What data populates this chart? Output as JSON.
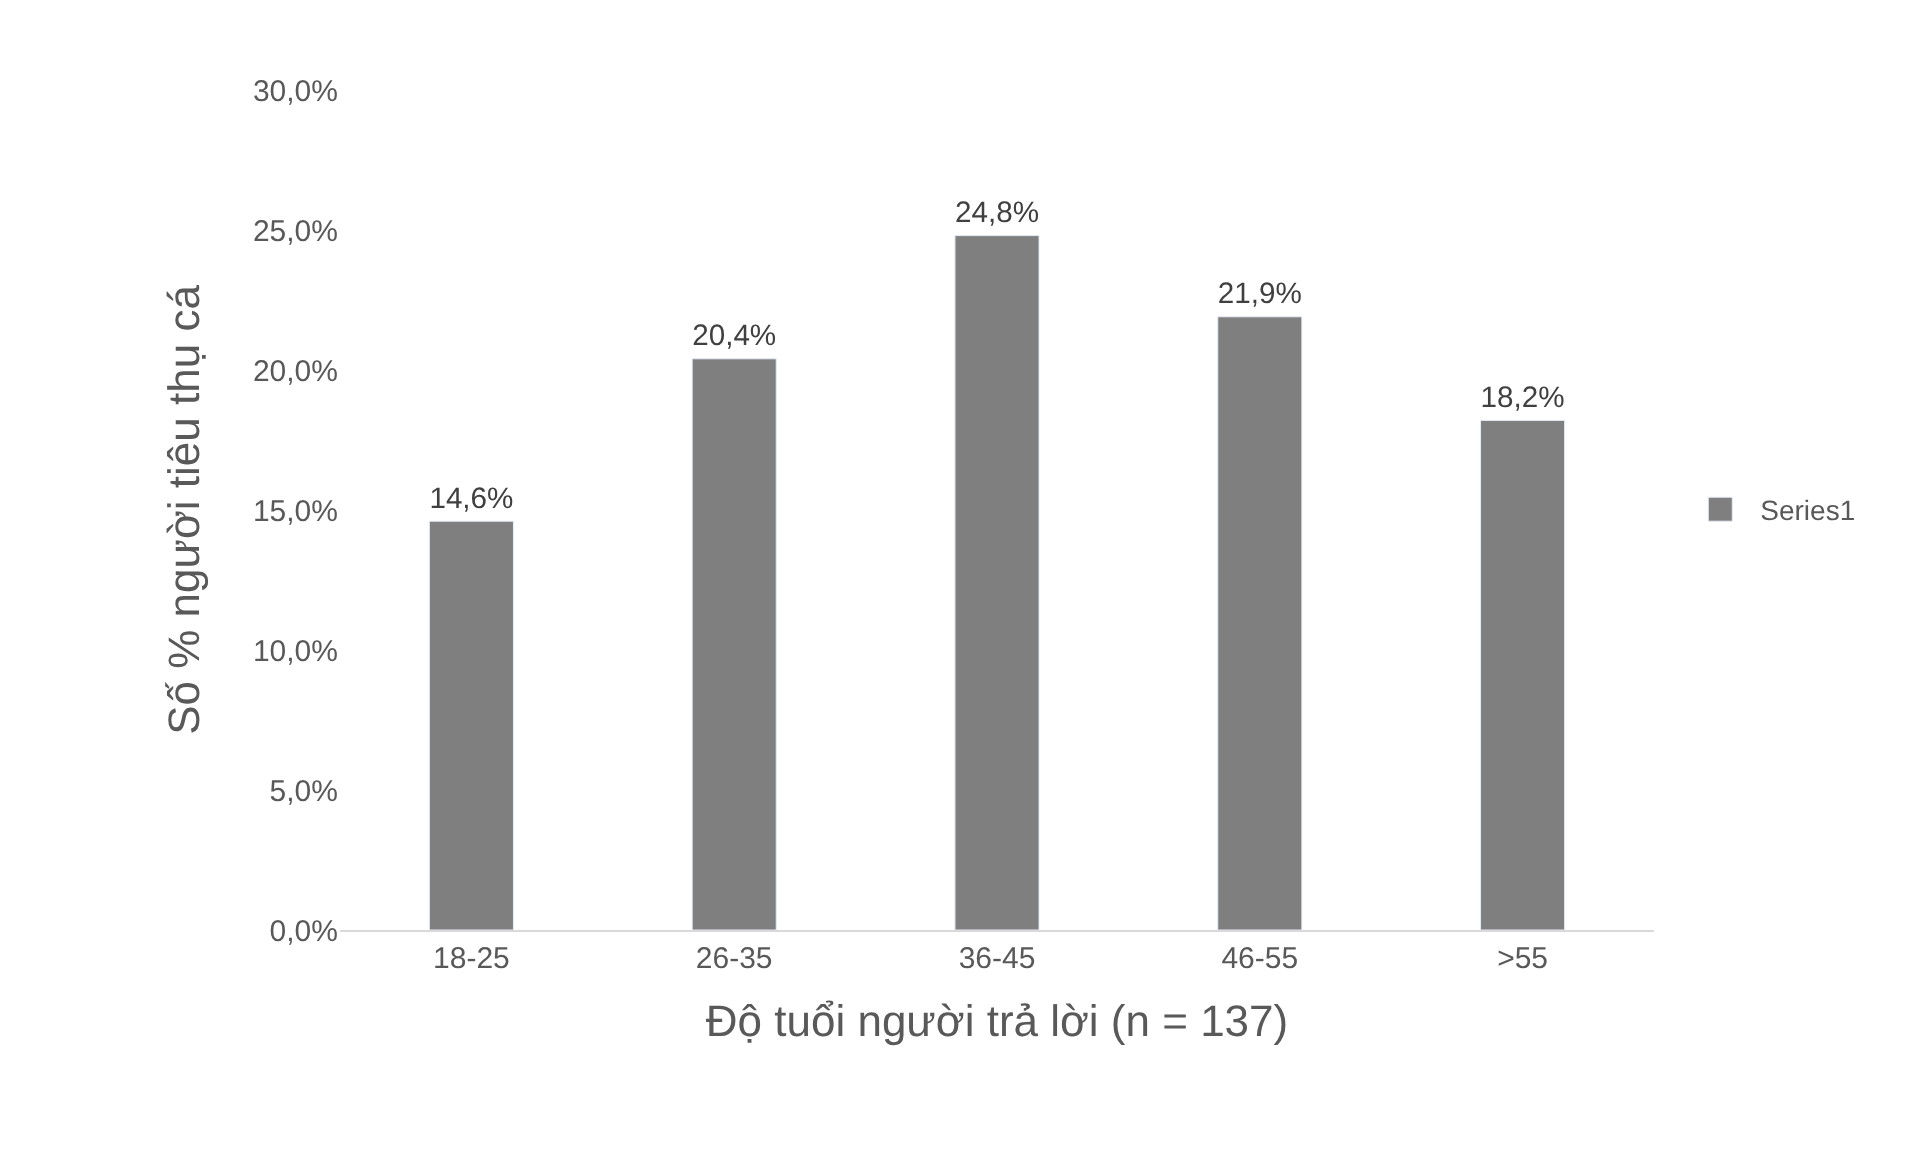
{
  "chart_data": {
    "type": "bar",
    "xlabel": "Độ tuổi người trả lời (n = 137)",
    "ylabel": "Số % người tiêu thụ cá",
    "categories": [
      "18-25",
      "26-35",
      "36-45",
      "46-55",
      ">55"
    ],
    "series": [
      {
        "name": "Series1",
        "color": "#7f7f7f",
        "values": [
          14.6,
          20.4,
          24.8,
          21.9,
          18.2
        ],
        "value_labels": [
          "14,6%",
          "20,4%",
          "24,8%",
          "21,9%",
          "18,2%"
        ]
      }
    ],
    "ylim": [
      0,
      30
    ],
    "yticks": [
      {
        "value": 0,
        "label": "0,0%"
      },
      {
        "value": 5,
        "label": "5,0%"
      },
      {
        "value": 10,
        "label": "10,0%"
      },
      {
        "value": 15,
        "label": "15,0%"
      },
      {
        "value": 20,
        "label": "20,0%"
      },
      {
        "value": 25,
        "label": "25,0%"
      },
      {
        "value": 30,
        "label": "30,0%"
      }
    ],
    "grid": false,
    "legend": "right"
  }
}
